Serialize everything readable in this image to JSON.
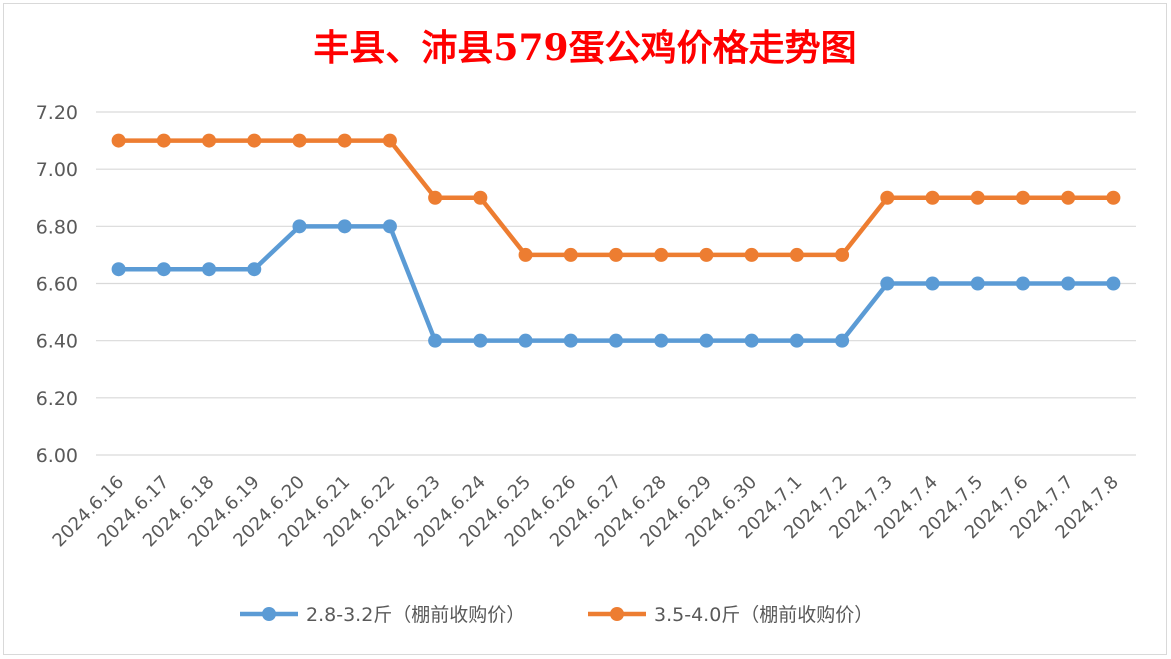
{
  "chart_data": {
    "type": "line",
    "title": "丰县、沛县579蛋公鸡价格走势图",
    "title_color": "#ff0000",
    "xlabel": "",
    "ylabel": "",
    "categories": [
      "2024.6.16",
      "2024.6.17",
      "2024.6.18",
      "2024.6.19",
      "2024.6.20",
      "2024.6.21",
      "2024.6.22",
      "2024.6.23",
      "2024.6.24",
      "2024.6.25",
      "2024.6.26",
      "2024.6.27",
      "2024.6.28",
      "2024.6.29",
      "2024.6.30",
      "2024.7.1",
      "2024.7.2",
      "2024.7.3",
      "2024.7.4",
      "2024.7.5",
      "2024.7.6",
      "2024.7.7",
      "2024.7.8"
    ],
    "series": [
      {
        "name": "2.8-3.2斤（棚前收购价）",
        "color": "#5b9bd5",
        "values": [
          6.65,
          6.65,
          6.65,
          6.65,
          6.8,
          6.8,
          6.8,
          6.4,
          6.4,
          6.4,
          6.4,
          6.4,
          6.4,
          6.4,
          6.4,
          6.4,
          6.4,
          6.6,
          6.6,
          6.6,
          6.6,
          6.6,
          6.6
        ]
      },
      {
        "name": "3.5-4.0斤（棚前收购价）",
        "color": "#ed7d31",
        "values": [
          7.1,
          7.1,
          7.1,
          7.1,
          7.1,
          7.1,
          7.1,
          6.9,
          6.9,
          6.7,
          6.7,
          6.7,
          6.7,
          6.7,
          6.7,
          6.7,
          6.7,
          6.9,
          6.9,
          6.9,
          6.9,
          6.9,
          6.9
        ]
      }
    ],
    "ylim": [
      6.0,
      7.2
    ],
    "y_ticks": [
      "6.00",
      "6.20",
      "6.40",
      "6.60",
      "6.80",
      "7.00",
      "7.20"
    ],
    "grid": true,
    "legend_position": "bottom",
    "markers": "circle"
  }
}
